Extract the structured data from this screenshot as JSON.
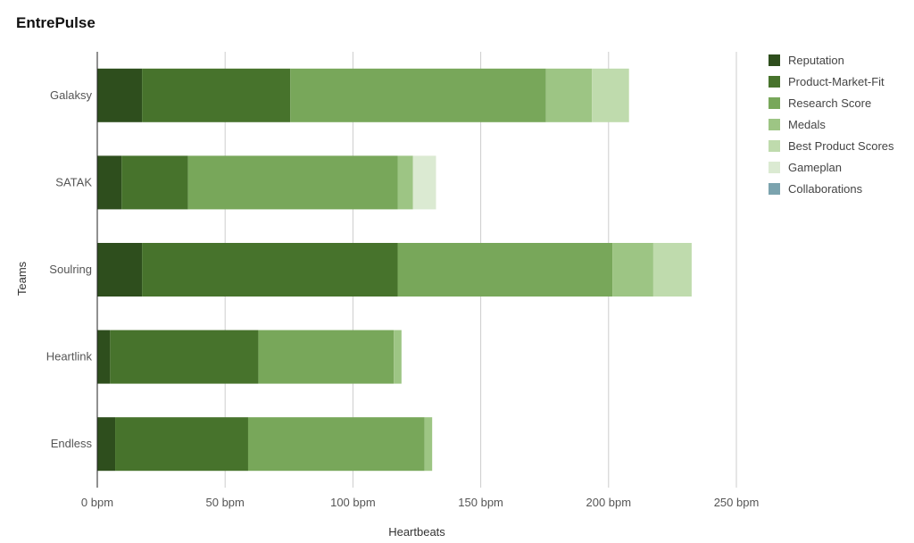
{
  "title": "EntrePulse",
  "chart_data": {
    "type": "bar",
    "orientation": "horizontal",
    "stacked": true,
    "title": "EntrePulse",
    "xlabel": "Heartbeats",
    "ylabel": "Teams",
    "xlim": [
      0,
      250
    ],
    "x_ticks": [
      0,
      50,
      100,
      150,
      200,
      250
    ],
    "x_tick_labels": [
      "0 bpm",
      "50 bpm",
      "100 bpm",
      "150 bpm",
      "200 bpm",
      "250 bpm"
    ],
    "x_grid": true,
    "legend_position": "right",
    "categories": [
      "Galaksy",
      "SATAK",
      "Soulring",
      "Heartlink",
      "Endless"
    ],
    "series": [
      {
        "name": "Reputation",
        "color": "#2e4e1d",
        "values": [
          17.5,
          9.5,
          17.5,
          5,
          7
        ]
      },
      {
        "name": "Product-Market-Fit",
        "color": "#47732c",
        "values": [
          58,
          26,
          100,
          58,
          52
        ]
      },
      {
        "name": "Research Score",
        "color": "#78a75a",
        "values": [
          100,
          82,
          84,
          53,
          69
        ]
      },
      {
        "name": "Medals",
        "color": "#9dc584",
        "values": [
          18,
          6,
          16,
          3,
          3
        ]
      },
      {
        "name": "Best Product Scores",
        "color": "#bfdbad",
        "values": [
          14.5,
          0,
          15,
          0,
          0
        ]
      },
      {
        "name": "Gameplan",
        "color": "#dbead2",
        "values": [
          0,
          9,
          0,
          0,
          0
        ]
      },
      {
        "name": "Collaborations",
        "color": "#7ba3ae",
        "values": [
          0,
          0,
          0,
          0,
          0
        ]
      }
    ]
  }
}
